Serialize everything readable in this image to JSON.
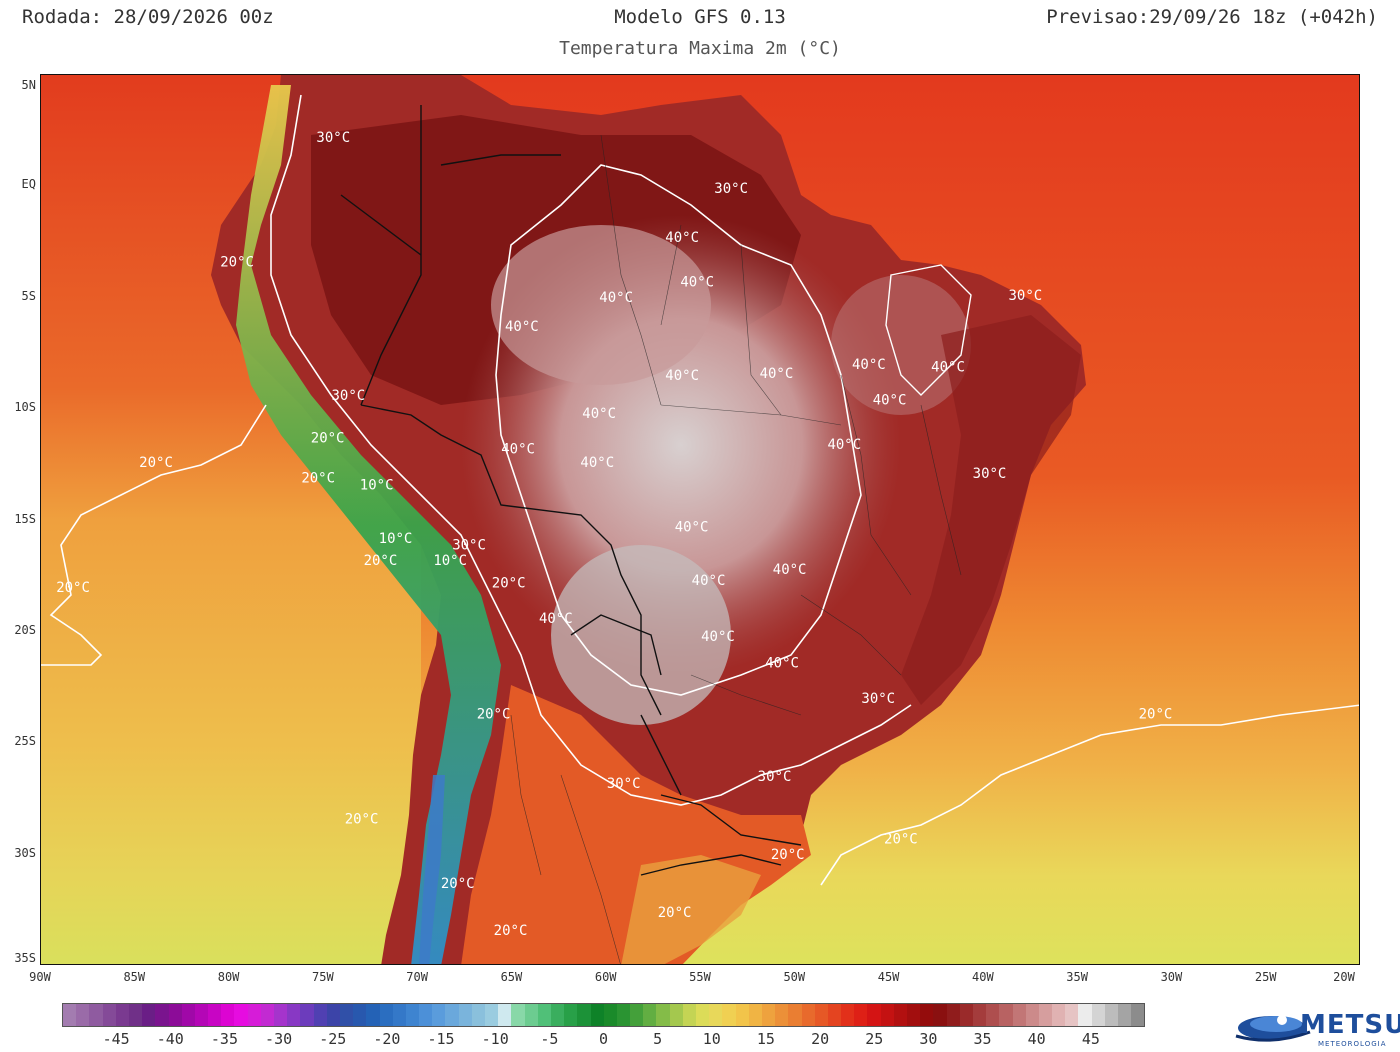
{
  "header": {
    "run": "Rodada: 28/09/2026 00z",
    "model": "Modelo GFS 0.13",
    "forecast": "Previsao:29/09/26 18z (+042h)",
    "subtitle": "Temperatura Maxima 2m (°C)"
  },
  "map": {
    "lon_range": [
      -90,
      -20
    ],
    "lat_range": [
      -35,
      5
    ],
    "lat_ticks": [
      "5N",
      "EQ",
      "5S",
      "10S",
      "15S",
      "20S",
      "25S",
      "30S",
      "35S"
    ],
    "lon_ticks": [
      "90W",
      "85W",
      "80W",
      "75W",
      "70W",
      "65W",
      "60W",
      "55W",
      "50W",
      "45W",
      "40W",
      "35W",
      "30W",
      "25W",
      "20W"
    ],
    "contour_labels": [
      {
        "text": "30°C",
        "lon": -74.5,
        "lat": 2.0
      },
      {
        "text": "20°C",
        "lon": -79.6,
        "lat": -3.6
      },
      {
        "text": "30°C",
        "lon": -53.4,
        "lat": -0.3
      },
      {
        "text": "40°C",
        "lon": -56.0,
        "lat": -2.5
      },
      {
        "text": "40°C",
        "lon": -55.2,
        "lat": -4.5
      },
      {
        "text": "40°C",
        "lon": -59.5,
        "lat": -5.2
      },
      {
        "text": "40°C",
        "lon": -64.5,
        "lat": -6.5
      },
      {
        "text": "40°C",
        "lon": -46.1,
        "lat": -8.2
      },
      {
        "text": "40°C",
        "lon": -41.9,
        "lat": -8.3
      },
      {
        "text": "30°C",
        "lon": -37.8,
        "lat": -5.1
      },
      {
        "text": "40°C",
        "lon": -56.0,
        "lat": -8.7
      },
      {
        "text": "40°C",
        "lon": -51.0,
        "lat": -8.6
      },
      {
        "text": "30°C",
        "lon": -73.7,
        "lat": -9.6
      },
      {
        "text": "40°C",
        "lon": -45.0,
        "lat": -9.8
      },
      {
        "text": "20°C",
        "lon": -74.8,
        "lat": -11.5
      },
      {
        "text": "40°C",
        "lon": -60.4,
        "lat": -10.4
      },
      {
        "text": "40°C",
        "lon": -47.4,
        "lat": -11.8
      },
      {
        "text": "40°C",
        "lon": -64.7,
        "lat": -12.0
      },
      {
        "text": "40°C",
        "lon": -60.5,
        "lat": -12.6
      },
      {
        "text": "20°C",
        "lon": -83.9,
        "lat": -12.6
      },
      {
        "text": "30°C",
        "lon": -39.7,
        "lat": -13.1
      },
      {
        "text": "20°C",
        "lon": -75.3,
        "lat": -13.3
      },
      {
        "text": "10°C",
        "lon": -72.2,
        "lat": -13.6
      },
      {
        "text": "40°C",
        "lon": -55.5,
        "lat": -15.5
      },
      {
        "text": "30°C",
        "lon": -67.3,
        "lat": -16.3
      },
      {
        "text": "10°C",
        "lon": -71.2,
        "lat": -16.0
      },
      {
        "text": "20°C",
        "lon": -72.0,
        "lat": -17.0
      },
      {
        "text": "10°C",
        "lon": -68.3,
        "lat": -17.0
      },
      {
        "text": "40°C",
        "lon": -50.3,
        "lat": -17.4
      },
      {
        "text": "40°C",
        "lon": -54.6,
        "lat": -17.9
      },
      {
        "text": "20°C",
        "lon": -88.3,
        "lat": -18.2
      },
      {
        "text": "20°C",
        "lon": -65.2,
        "lat": -18.0
      },
      {
        "text": "40°C",
        "lon": -62.7,
        "lat": -19.6
      },
      {
        "text": "40°C",
        "lon": -54.1,
        "lat": -20.4
      },
      {
        "text": "40°C",
        "lon": -50.7,
        "lat": -21.6
      },
      {
        "text": "30°C",
        "lon": -45.6,
        "lat": -23.2
      },
      {
        "text": "20°C",
        "lon": -66.0,
        "lat": -23.9
      },
      {
        "text": "20°C",
        "lon": -30.9,
        "lat": -23.9
      },
      {
        "text": "30°C",
        "lon": -59.1,
        "lat": -27.0
      },
      {
        "text": "30°C",
        "lon": -51.1,
        "lat": -26.7
      },
      {
        "text": "20°C",
        "lon": -73.0,
        "lat": -28.6
      },
      {
        "text": "20°C",
        "lon": -44.4,
        "lat": -29.5
      },
      {
        "text": "20°C",
        "lon": -50.4,
        "lat": -30.2
      },
      {
        "text": "20°C",
        "lon": -67.9,
        "lat": -31.5
      },
      {
        "text": "20°C",
        "lon": -56.4,
        "lat": -32.8
      },
      {
        "text": "20°C",
        "lon": -65.1,
        "lat": -33.6
      }
    ]
  },
  "legend": {
    "ticks": [
      "-45",
      "-40",
      "-35",
      "-30",
      "-25",
      "-20",
      "-15",
      "-10",
      "-5",
      "0",
      "5",
      "10",
      "15",
      "20",
      "25",
      "30",
      "35",
      "40",
      "45"
    ],
    "range": [
      -50,
      50
    ],
    "colors": [
      "#a37cb0",
      "#9a6ba8",
      "#8f5ba0",
      "#844a98",
      "#7a3a90",
      "#703088",
      "#6a1e86",
      "#7a148e",
      "#8c0c98",
      "#a008a8",
      "#b406b6",
      "#c805c4",
      "#dc04d2",
      "#e60ce0",
      "#d61cd8",
      "#c22ad2",
      "#a534cc",
      "#8838c4",
      "#6c3cbc",
      "#5040b2",
      "#3c44a8",
      "#3050a8",
      "#2858ae",
      "#2462b6",
      "#2b6ec0",
      "#3478c8",
      "#3e84d0",
      "#4c90d8",
      "#5a9cdc",
      "#6aa8dc",
      "#7ab4dc",
      "#8ac0dc",
      "#9acce0",
      "#cfe9ef",
      "#88d8a8",
      "#6ccc90",
      "#50c078",
      "#3aae5e",
      "#28a048",
      "#1c9238",
      "#0e8228",
      "#1a8a2a",
      "#2a9432",
      "#44a03a",
      "#62ae42",
      "#84bc48",
      "#a4c84e",
      "#c4d454",
      "#dcdc58",
      "#e8d85a",
      "#f0d052",
      "#f2c44a",
      "#f0b444",
      "#eea23e",
      "#ec9038",
      "#ea7e32",
      "#e86a2c",
      "#e65826",
      "#e44420",
      "#e2301a",
      "#de2016",
      "#d41414",
      "#c41212",
      "#b21010",
      "#a20e0e",
      "#940c0c",
      "#8a1010",
      "#901c1c",
      "#9a2a2a",
      "#a43c3c",
      "#ae4e4e",
      "#b86262",
      "#c27676",
      "#cc8a8a",
      "#d69e9e",
      "#e0b2b2",
      "#e6c4c4",
      "#ececec",
      "#d4d4d4",
      "#bcbcbc",
      "#a4a4a4",
      "#8c8c8c"
    ]
  },
  "logo": {
    "name": "METSUL",
    "tagline": "METEOROLOGIA"
  }
}
